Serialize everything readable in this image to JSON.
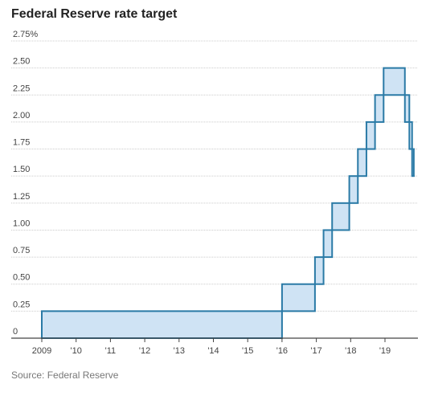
{
  "title": "Federal Reserve rate target",
  "source": "Source: Federal Reserve",
  "chart_data": {
    "type": "area",
    "title": "Federal Reserve rate target",
    "ylim": [
      0,
      2.75
    ],
    "xlim": [
      2009,
      2019.9
    ],
    "grid": true,
    "y_ticks": [
      {
        "value": 0,
        "label": "0"
      },
      {
        "value": 0.25,
        "label": "0.25"
      },
      {
        "value": 0.5,
        "label": "0.50"
      },
      {
        "value": 0.75,
        "label": "0.75"
      },
      {
        "value": 1.0,
        "label": "1.00"
      },
      {
        "value": 1.25,
        "label": "1.25"
      },
      {
        "value": 1.5,
        "label": "1.50"
      },
      {
        "value": 1.75,
        "label": "1.75"
      },
      {
        "value": 2.0,
        "label": "2.00"
      },
      {
        "value": 2.25,
        "label": "2.25"
      },
      {
        "value": 2.5,
        "label": "2.50"
      },
      {
        "value": 2.75,
        "label": "2.75%"
      }
    ],
    "x_ticks": [
      {
        "value": 2009,
        "label": "2009"
      },
      {
        "value": 2010,
        "label": "'10"
      },
      {
        "value": 2011,
        "label": "'11"
      },
      {
        "value": 2012,
        "label": "'12"
      },
      {
        "value": 2013,
        "label": "'13"
      },
      {
        "value": 2014,
        "label": "'14"
      },
      {
        "value": 2015,
        "label": "'15"
      },
      {
        "value": 2016,
        "label": "'16"
      },
      {
        "value": 2017,
        "label": "'17"
      },
      {
        "value": 2018,
        "label": "'18"
      },
      {
        "value": 2019,
        "label": "'19"
      }
    ],
    "series": [
      {
        "steps": [
          {
            "start": 2009.0,
            "end": 2016.0,
            "lower": 0,
            "upper": 0.25
          },
          {
            "start": 2016.0,
            "end": 2016.96,
            "lower": 0.25,
            "upper": 0.5
          },
          {
            "start": 2016.96,
            "end": 2017.21,
            "lower": 0.5,
            "upper": 0.75
          },
          {
            "start": 2017.21,
            "end": 2017.46,
            "lower": 0.75,
            "upper": 1.0
          },
          {
            "start": 2017.46,
            "end": 2017.96,
            "lower": 1.0,
            "upper": 1.25
          },
          {
            "start": 2017.96,
            "end": 2018.21,
            "lower": 1.25,
            "upper": 1.5
          },
          {
            "start": 2018.21,
            "end": 2018.46,
            "lower": 1.5,
            "upper": 1.75
          },
          {
            "start": 2018.46,
            "end": 2018.71,
            "lower": 1.75,
            "upper": 2.0
          },
          {
            "start": 2018.71,
            "end": 2018.96,
            "lower": 2.0,
            "upper": 2.25
          },
          {
            "start": 2018.96,
            "end": 2019.58,
            "lower": 2.25,
            "upper": 2.5
          },
          {
            "start": 2019.58,
            "end": 2019.71,
            "lower": 2.0,
            "upper": 2.25
          },
          {
            "start": 2019.71,
            "end": 2019.79,
            "lower": 1.75,
            "upper": 2.0
          },
          {
            "start": 2019.79,
            "end": 2019.84,
            "lower": 1.5,
            "upper": 1.75
          }
        ]
      }
    ],
    "colors": {
      "fill": "#cfe3f4",
      "line": "#2a7aa6",
      "grid": "#cccccc",
      "axis": "#444444"
    }
  }
}
